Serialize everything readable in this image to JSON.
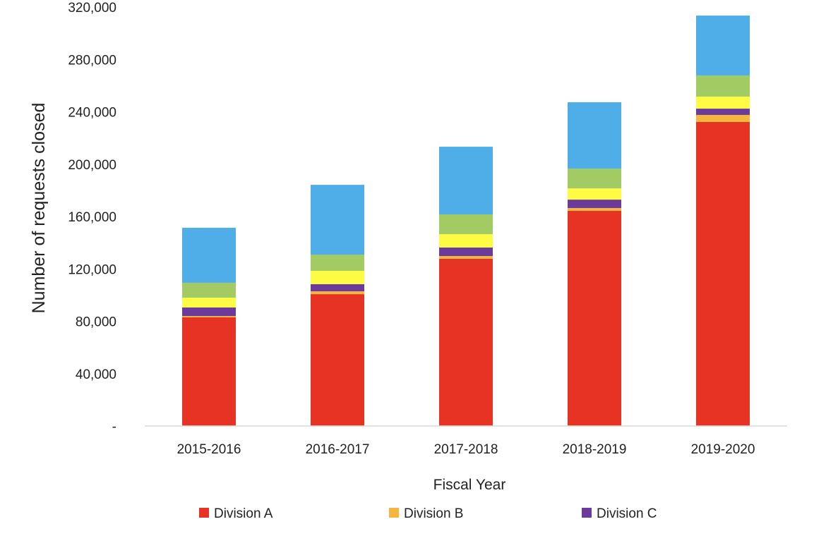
{
  "chart_data": {
    "type": "bar",
    "stacked": true,
    "title": "",
    "xlabel": "Fiscal Year",
    "ylabel": "Number of requests closed",
    "ylim": [
      0,
      320000
    ],
    "yticks": [
      0,
      40000,
      80000,
      120000,
      160000,
      200000,
      240000,
      280000,
      320000
    ],
    "ytick_labels": [
      "-",
      "40,000",
      "80,000",
      "120,000",
      "160,000",
      "200,000",
      "240,000",
      "280,000",
      "320,000"
    ],
    "categories": [
      "2015-2016",
      "2016-2017",
      "2017-2018",
      "2018-2019",
      "2019-2020"
    ],
    "grid": false,
    "legend_position": "bottom",
    "series": [
      {
        "name": "Division A",
        "color": "#e63323",
        "values": [
          83000,
          100700,
          127700,
          164300,
          232200
        ]
      },
      {
        "name": "Division B",
        "color": "#f4b63e",
        "values": [
          1000,
          2200,
          2100,
          2200,
          5400
        ]
      },
      {
        "name": "Division C",
        "color": "#6b3a9b",
        "values": [
          6500,
          5400,
          6500,
          6400,
          4800
        ]
      },
      {
        "name": null,
        "color": "#fdfb44",
        "values": [
          7500,
          10200,
          10200,
          8600,
          9200
        ]
      },
      {
        "name": null,
        "color": "#a2cb64",
        "values": [
          11400,
          12400,
          15100,
          15100,
          16100
        ]
      },
      {
        "name": null,
        "color": "#4faee8",
        "values": [
          42000,
          53300,
          51700,
          50700,
          45800
        ]
      }
    ]
  }
}
